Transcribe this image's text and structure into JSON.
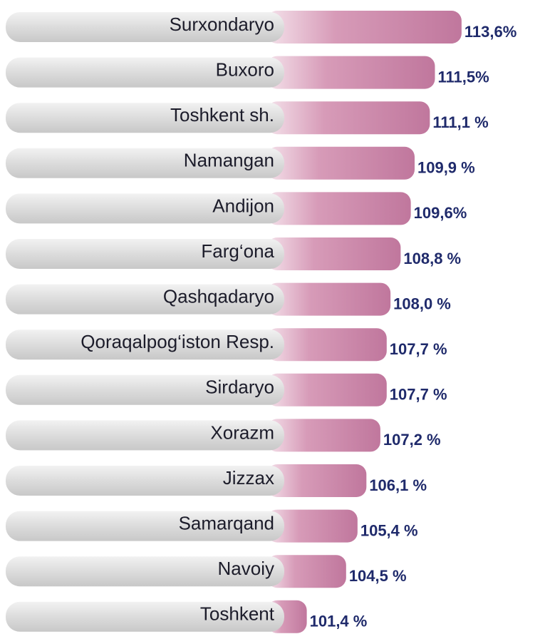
{
  "chart_data": {
    "type": "bar",
    "orientation": "horizontal",
    "categories": [
      "Surxondaryo",
      "Buxoro",
      "Toshkent sh.",
      "Namangan",
      "Andijon",
      "Farg‘ona",
      "Qashqadaryo",
      "Qoraqalpog‘iston Resp.",
      "Sirdaryo",
      "Xorazm",
      "Jizzax",
      "Samarqand",
      "Navoiy",
      "Toshkent"
    ],
    "values": [
      113.6,
      111.5,
      111.1,
      109.9,
      109.6,
      108.8,
      108.0,
      107.7,
      107.7,
      107.2,
      106.1,
      105.4,
      104.5,
      101.4
    ],
    "value_labels": [
      "113,6%",
      "111,5%",
      "111,1 %",
      "109,9 %",
      "109,6%",
      "108,8 %",
      "108,0 %",
      "107,7 %",
      "107,7 %",
      "107,2 %",
      "106,1 %",
      "105,4 %",
      "104,5 %",
      "101,4 %"
    ],
    "color": "#c0779d",
    "xlim": [
      99.4,
      114
    ]
  }
}
